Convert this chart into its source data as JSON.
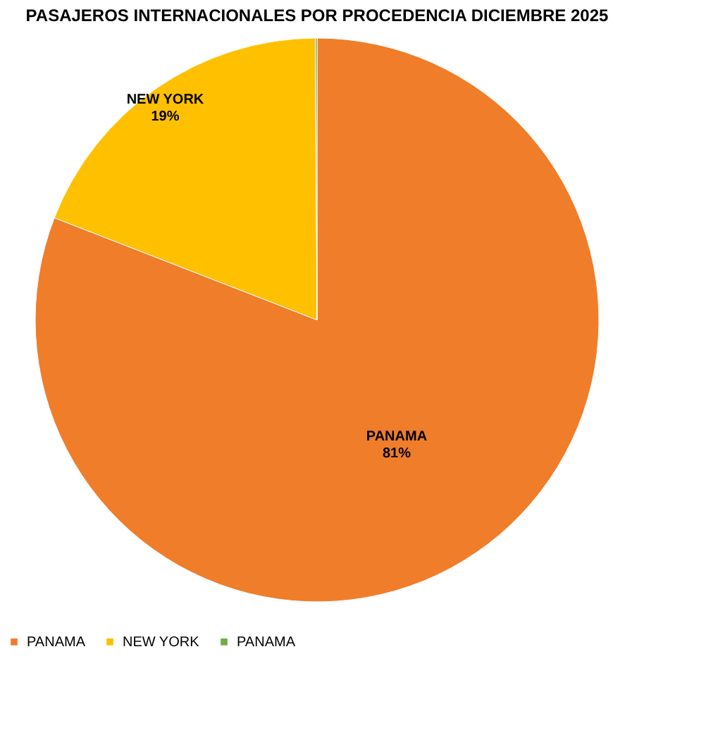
{
  "chart_data": {
    "type": "pie",
    "title": "PASAJEROS INTERNACIONALES POR PROCEDENCIA DICIEMBRE 2025",
    "categories": [
      "PANAMA",
      "NEW YORK",
      "PANAMA"
    ],
    "values": [
      80.9,
      19.0,
      0.1
    ],
    "colors": [
      "#f07d2a",
      "#ffc000",
      "#70ad47"
    ],
    "value_labels": [
      "81%",
      "19%",
      null
    ],
    "legend": "bottom"
  }
}
